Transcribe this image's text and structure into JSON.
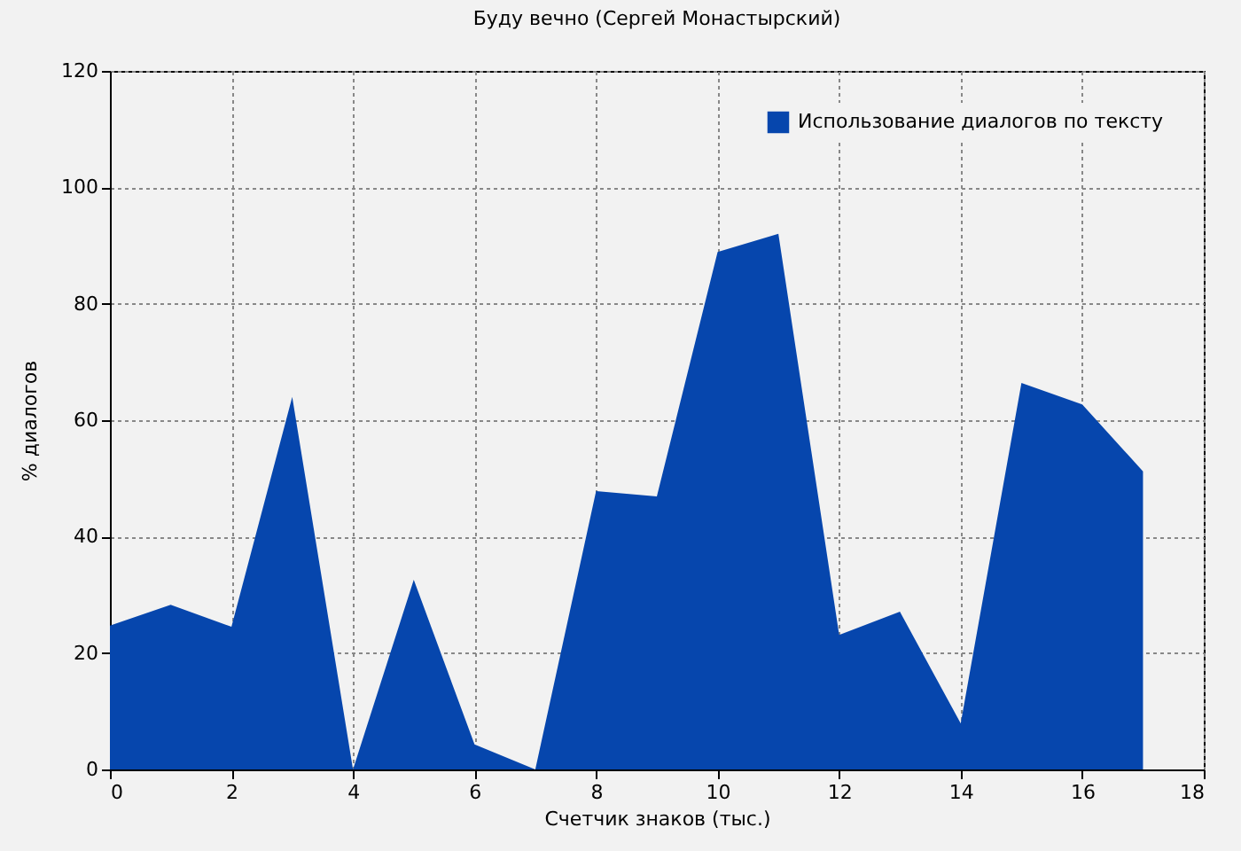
{
  "chart_data": {
    "type": "area",
    "title": "Буду вечно (Сергей Монастырский)",
    "xlabel": "Счетчик знаков (тыс.)",
    "ylabel": "% диалогов",
    "x": [
      0,
      1,
      2,
      3,
      4,
      5,
      6,
      7,
      8,
      9,
      10,
      11,
      12,
      13,
      14,
      15,
      16,
      17
    ],
    "series": [
      {
        "name": "Использование диалогов по тексту",
        "color": "#0646ad",
        "values": [
          24.7,
          28.3,
          24.5,
          64,
          0,
          32.6,
          4.3,
          0,
          47.8,
          46.9,
          88.9,
          92,
          23.1,
          27.1,
          7.9,
          66.4,
          62.7,
          51.2
        ]
      }
    ],
    "xlim": [
      0,
      18
    ],
    "xticks": [
      0,
      2,
      4,
      6,
      8,
      10,
      12,
      14,
      16,
      18
    ],
    "ylim": [
      0,
      120
    ],
    "yticks": [
      0,
      20,
      40,
      60,
      80,
      100,
      120
    ],
    "grid": true,
    "legend": "top right"
  }
}
